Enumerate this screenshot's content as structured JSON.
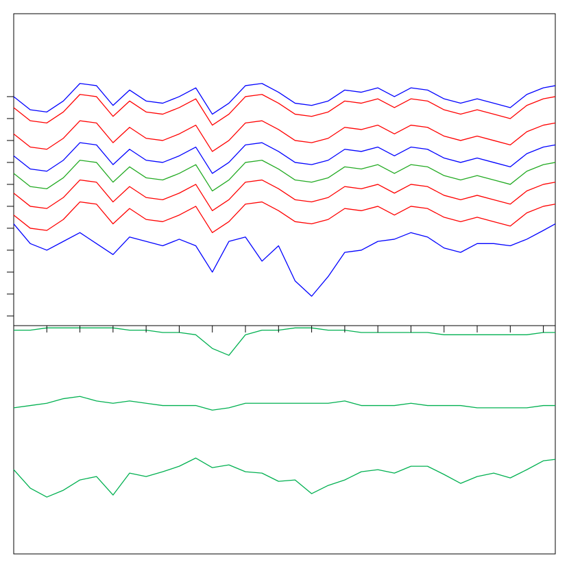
{
  "chart_data": [
    {
      "type": "line",
      "x": [
        0,
        0.5,
        1,
        1.5,
        2,
        2.5,
        3,
        3.5,
        4,
        4.5,
        5,
        5.5,
        6,
        6.5,
        7,
        7.5,
        8,
        8.5,
        9,
        9.5,
        10,
        10.5,
        11,
        11.5,
        12,
        12.5,
        13,
        13.5,
        14,
        14.5,
        15,
        15.5,
        16,
        16.36
      ],
      "xlim": [
        0,
        16.36
      ],
      "ylim": [
        -0.44,
        13.78
      ],
      "yticks": [
        0,
        1,
        2,
        3,
        4,
        5,
        6,
        7,
        8,
        9,
        10
      ],
      "series": [
        {
          "color": "#0000ff",
          "values": [
            10.0,
            9.4,
            9.3,
            9.8,
            10.6,
            10.5,
            9.6,
            10.3,
            9.8,
            9.7,
            10.0,
            10.4,
            9.2,
            9.7,
            10.5,
            10.6,
            10.2,
            9.7,
            9.6,
            9.8,
            10.3,
            10.2,
            10.4,
            10.0,
            10.4,
            10.3,
            9.9,
            9.7,
            9.9,
            9.7,
            9.5,
            10.1,
            10.4,
            10.5
          ]
        },
        {
          "color": "#ff0000",
          "values": [
            9.5,
            8.9,
            8.8,
            9.3,
            10.1,
            10.0,
            9.1,
            9.8,
            9.3,
            9.2,
            9.5,
            9.9,
            8.7,
            9.2,
            10.0,
            10.1,
            9.7,
            9.2,
            9.1,
            9.3,
            9.8,
            9.7,
            9.9,
            9.5,
            9.9,
            9.8,
            9.4,
            9.2,
            9.4,
            9.2,
            9.0,
            9.6,
            9.9,
            10.0
          ]
        },
        {
          "color": "#ff0000",
          "values": [
            8.3,
            7.7,
            7.6,
            8.1,
            8.9,
            8.8,
            7.9,
            8.6,
            8.1,
            8.0,
            8.3,
            8.7,
            7.5,
            8.0,
            8.8,
            8.9,
            8.5,
            8.0,
            7.9,
            8.1,
            8.6,
            8.5,
            8.7,
            8.3,
            8.7,
            8.6,
            8.2,
            8.0,
            8.2,
            8.0,
            7.8,
            8.4,
            8.7,
            8.8
          ]
        },
        {
          "color": "#0000ff",
          "values": [
            7.3,
            6.7,
            6.6,
            7.1,
            7.9,
            7.8,
            6.9,
            7.6,
            7.1,
            7.0,
            7.3,
            7.7,
            6.5,
            7.0,
            7.8,
            7.9,
            7.5,
            7.0,
            6.9,
            7.1,
            7.6,
            7.5,
            7.7,
            7.3,
            7.7,
            7.6,
            7.2,
            7.0,
            7.2,
            7.0,
            6.8,
            7.4,
            7.7,
            7.8
          ]
        },
        {
          "color": "#22aa22",
          "values": [
            6.5,
            5.9,
            5.8,
            6.3,
            7.1,
            7.0,
            6.1,
            6.8,
            6.3,
            6.2,
            6.5,
            6.9,
            5.7,
            6.2,
            7.0,
            7.1,
            6.7,
            6.2,
            6.1,
            6.3,
            6.8,
            6.7,
            6.9,
            6.5,
            6.9,
            6.8,
            6.4,
            6.2,
            6.4,
            6.2,
            6.0,
            6.6,
            6.9,
            7.0
          ]
        },
        {
          "color": "#ff0000",
          "values": [
            5.6,
            5.0,
            4.9,
            5.4,
            6.2,
            6.1,
            5.2,
            5.9,
            5.4,
            5.3,
            5.6,
            6.0,
            4.8,
            5.3,
            6.1,
            6.2,
            5.8,
            5.3,
            5.2,
            5.4,
            5.9,
            5.8,
            6.0,
            5.6,
            6.0,
            5.9,
            5.5,
            5.3,
            5.5,
            5.3,
            5.1,
            5.7,
            6.0,
            6.1
          ]
        },
        {
          "color": "#0000ff",
          "values": [
            4.2,
            3.3,
            3.0,
            3.4,
            3.8,
            3.3,
            2.8,
            3.6,
            3.4,
            3.2,
            3.5,
            3.2,
            2.0,
            3.4,
            3.6,
            2.5,
            3.2,
            1.6,
            0.9,
            1.8,
            2.9,
            3.0,
            3.4,
            3.5,
            3.8,
            3.6,
            3.1,
            2.9,
            3.3,
            3.3,
            3.2,
            3.5,
            3.9,
            4.2
          ]
        },
        {
          "color": "#ff0000",
          "values": [
            4.6,
            4.0,
            3.9,
            4.4,
            5.2,
            5.1,
            4.2,
            4.9,
            4.4,
            4.3,
            4.6,
            5.0,
            3.8,
            4.3,
            5.1,
            5.2,
            4.8,
            4.3,
            4.2,
            4.4,
            4.9,
            4.8,
            5.0,
            4.6,
            5.0,
            4.9,
            4.5,
            4.3,
            4.5,
            4.3,
            4.1,
            4.7,
            5.0,
            5.1
          ]
        }
      ]
    },
    {
      "type": "line",
      "x": [
        0,
        0.5,
        1,
        1.5,
        2,
        2.5,
        3,
        3.5,
        4,
        4.5,
        5,
        5.5,
        6,
        6.5,
        7,
        7.5,
        8,
        8.5,
        9,
        9.5,
        10,
        10.5,
        11,
        11.5,
        12,
        12.5,
        13,
        13.5,
        14,
        14.5,
        15,
        15.5,
        16,
        16.36
      ],
      "xlim": [
        0,
        16.36
      ],
      "xticks": [
        1,
        2,
        3,
        4,
        5,
        6,
        7,
        8,
        9,
        10,
        11,
        12,
        13,
        14,
        15,
        16
      ],
      "ylim": [
        0,
        10
      ],
      "series": [
        {
          "color": "#00b050",
          "values": [
            9.8,
            9.8,
            9.9,
            9.9,
            9.9,
            9.9,
            9.9,
            9.8,
            9.8,
            9.7,
            9.7,
            9.6,
            9.0,
            8.7,
            9.6,
            9.8,
            9.8,
            9.9,
            9.9,
            9.8,
            9.8,
            9.7,
            9.7,
            9.7,
            9.7,
            9.7,
            9.6,
            9.6,
            9.6,
            9.6,
            9.6,
            9.6,
            9.7,
            9.7
          ]
        },
        {
          "color": "#00b050",
          "values": [
            6.4,
            6.5,
            6.6,
            6.8,
            6.9,
            6.7,
            6.6,
            6.7,
            6.6,
            6.5,
            6.5,
            6.5,
            6.3,
            6.4,
            6.6,
            6.6,
            6.6,
            6.6,
            6.6,
            6.6,
            6.7,
            6.5,
            6.5,
            6.5,
            6.6,
            6.5,
            6.5,
            6.5,
            6.4,
            6.4,
            6.4,
            6.4,
            6.5,
            6.5
          ]
        },
        {
          "color": "#00b050",
          "values": [
            3.69,
            2.88,
            2.49,
            2.79,
            3.24,
            3.39,
            2.58,
            3.54,
            3.39,
            3.6,
            3.84,
            4.2,
            3.78,
            3.9,
            3.6,
            3.54,
            3.18,
            3.24,
            2.64,
            3.0,
            3.24,
            3.6,
            3.69,
            3.54,
            3.84,
            3.84,
            3.48,
            3.09,
            3.39,
            3.54,
            3.33,
            3.69,
            4.08,
            4.14
          ]
        }
      ]
    }
  ]
}
